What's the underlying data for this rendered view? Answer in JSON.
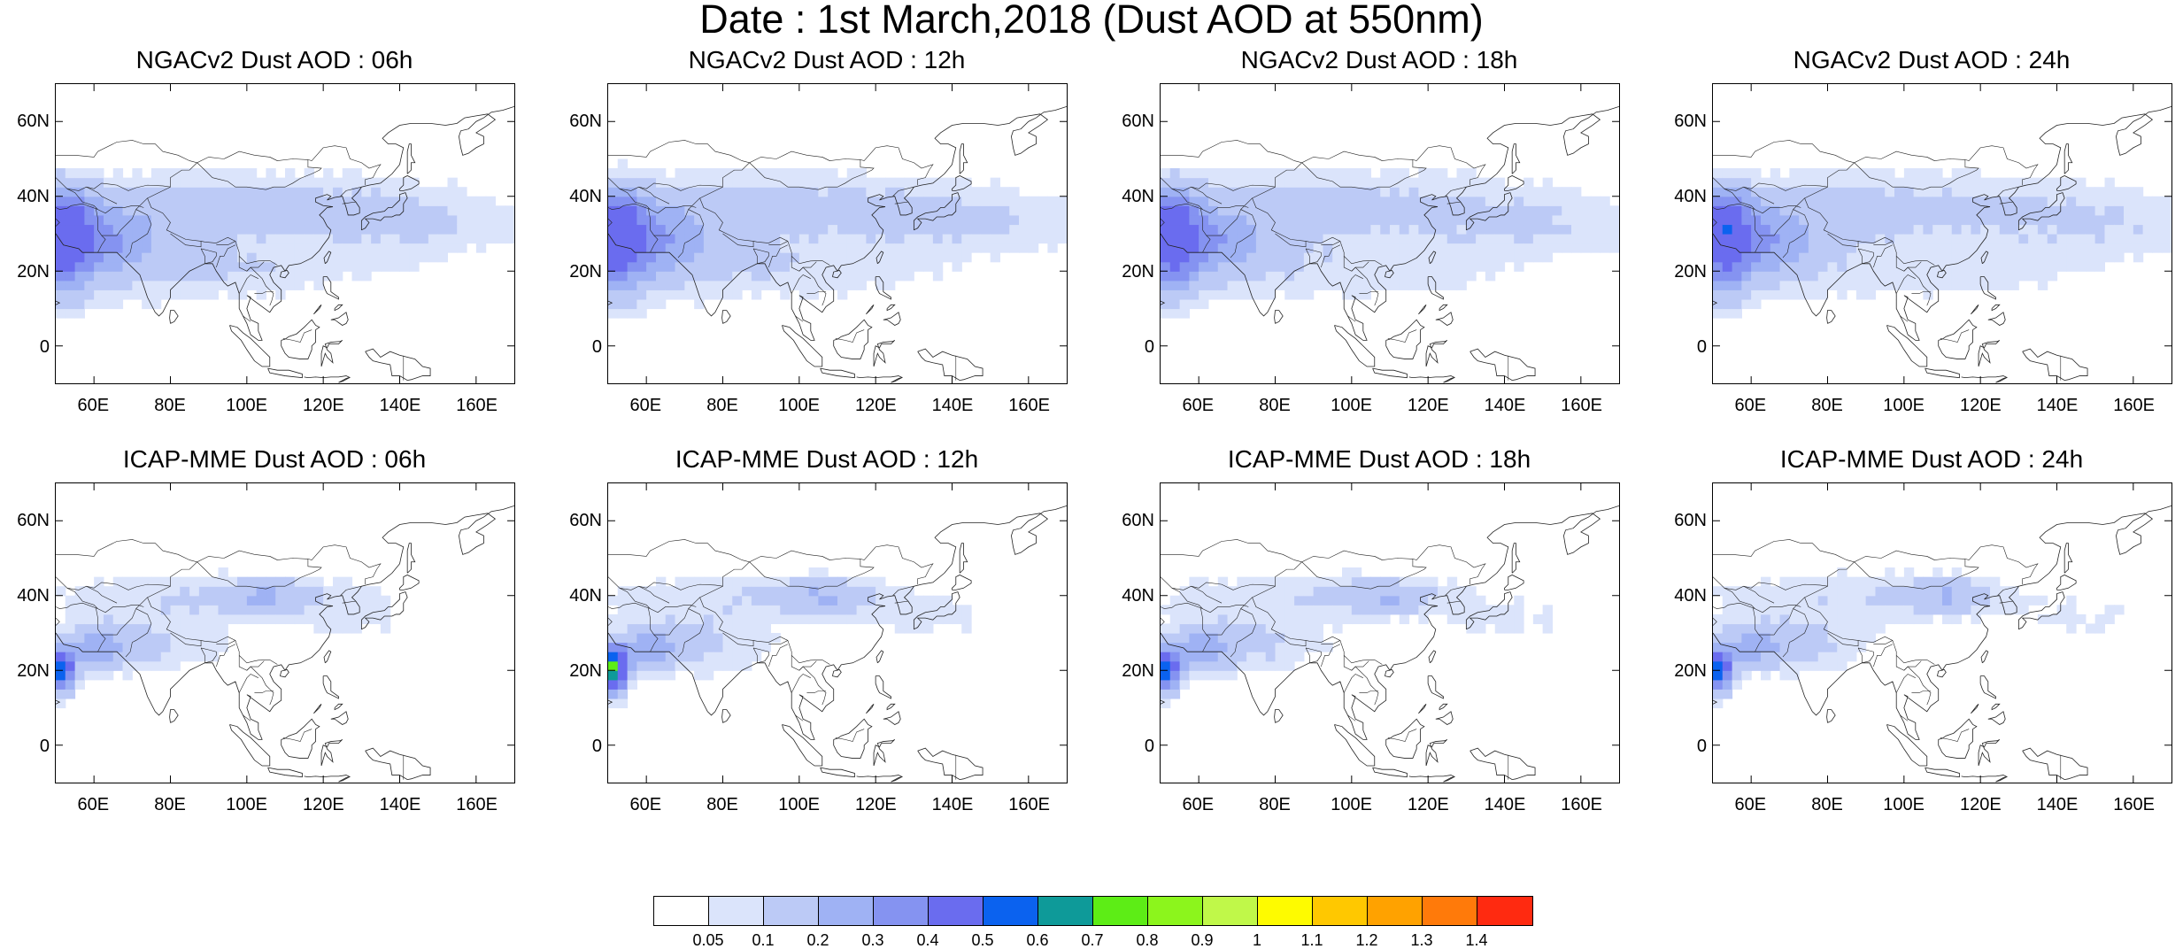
{
  "title": "Date : 1st March,2018 (Dust AOD at 550nm)",
  "panels": [
    {
      "title": "NGACv2 Dust AOD : 06h",
      "model": "ngac"
    },
    {
      "title": "NGACv2 Dust AOD : 12h",
      "model": "ngac"
    },
    {
      "title": "NGACv2 Dust AOD : 18h",
      "model": "ngac"
    },
    {
      "title": "NGACv2 Dust AOD : 24h",
      "model": "ngac"
    },
    {
      "title": "ICAP-MME Dust AOD : 06h",
      "model": "icap"
    },
    {
      "title": "ICAP-MME Dust AOD : 12h",
      "model": "icap"
    },
    {
      "title": "ICAP-MME Dust AOD : 18h",
      "model": "icap"
    },
    {
      "title": "ICAP-MME Dust AOD : 24h",
      "model": "icap"
    }
  ],
  "lat_ticks": [
    "60N",
    "40N",
    "20N",
    "0"
  ],
  "lon_ticks": [
    "60E",
    "80E",
    "100E",
    "120E",
    "140E",
    "160E"
  ],
  "colorbar": {
    "labels": [
      "0.05",
      "0.1",
      "0.2",
      "0.3",
      "0.4",
      "0.5",
      "0.6",
      "0.7",
      "0.8",
      "0.9",
      "1",
      "1.1",
      "1.2",
      "1.3",
      "1.4"
    ],
    "colors": [
      "#ffffff",
      "#dbe4fb",
      "#bccaf6",
      "#9fb2f4",
      "#8593f1",
      "#6a6cef",
      "#0b62ef",
      "#0e9a99",
      "#5ded16",
      "#8cf51c",
      "#c0f849",
      "#fefb00",
      "#ffc800",
      "#ffa200",
      "#ff7a0a",
      "#ff2a10"
    ]
  }
}
